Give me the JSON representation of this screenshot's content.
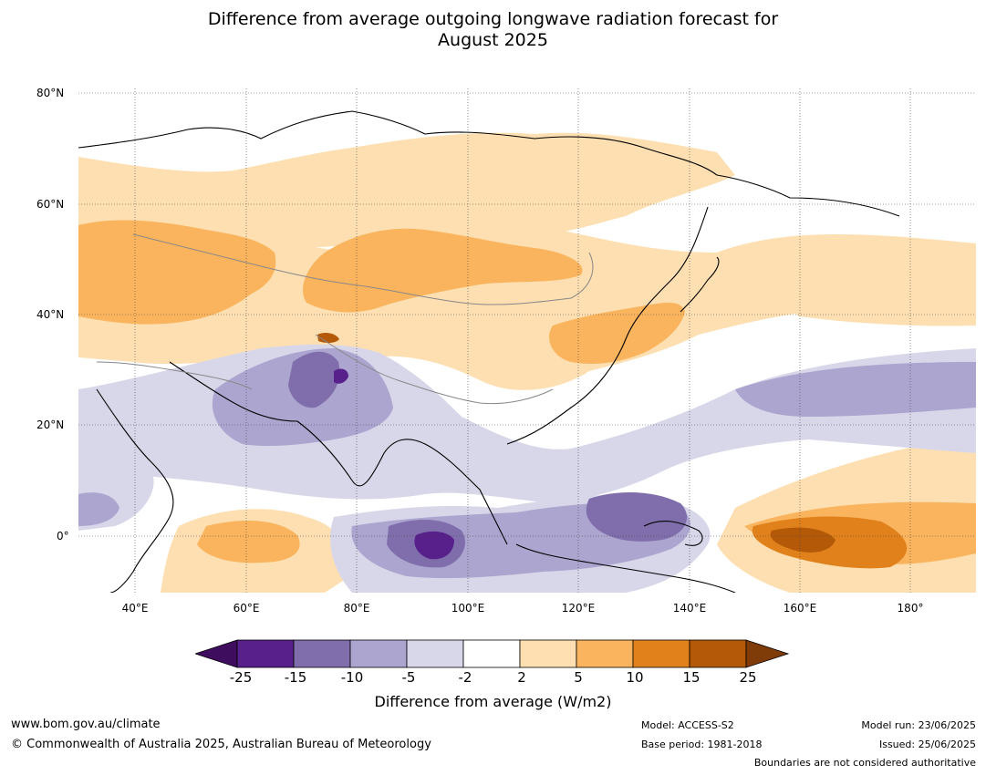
{
  "title_line1": "Difference from average outgoing longwave radiation forecast for",
  "title_line2": "August 2025",
  "lat_labels": [
    "80°N",
    "60°N",
    "40°N",
    "20°N",
    "0°"
  ],
  "lon_labels": [
    "40°E",
    "60°E",
    "80°E",
    "100°E",
    "120°E",
    "140°E",
    "160°E",
    "180°"
  ],
  "colorbar": {
    "title": "Difference from average (W/m2)",
    "tick_labels": [
      "-25",
      "-15",
      "-10",
      "-5",
      "-2",
      "2",
      "5",
      "10",
      "15",
      "25"
    ],
    "colors": [
      "#3f0d5e",
      "#57208a",
      "#7f6eab",
      "#aba5cf",
      "#d8d7ea",
      "#ffffff",
      "#fddfb1",
      "#fbb45e",
      "#e0811c",
      "#b35908",
      "#7f3b08"
    ]
  },
  "footer": {
    "website": "www.bom.gov.au/climate",
    "copyright": "© Commonwealth of Australia 2025, Australian Bureau of Meteorology",
    "model": "Model: ACCESS-S2",
    "base_period": "Base period: 1981-2018",
    "model_run": "Model run: 23/06/2025",
    "issued": "Issued: 25/06/2025",
    "disclaimer": "Boundaries are not considered authoritative"
  }
}
